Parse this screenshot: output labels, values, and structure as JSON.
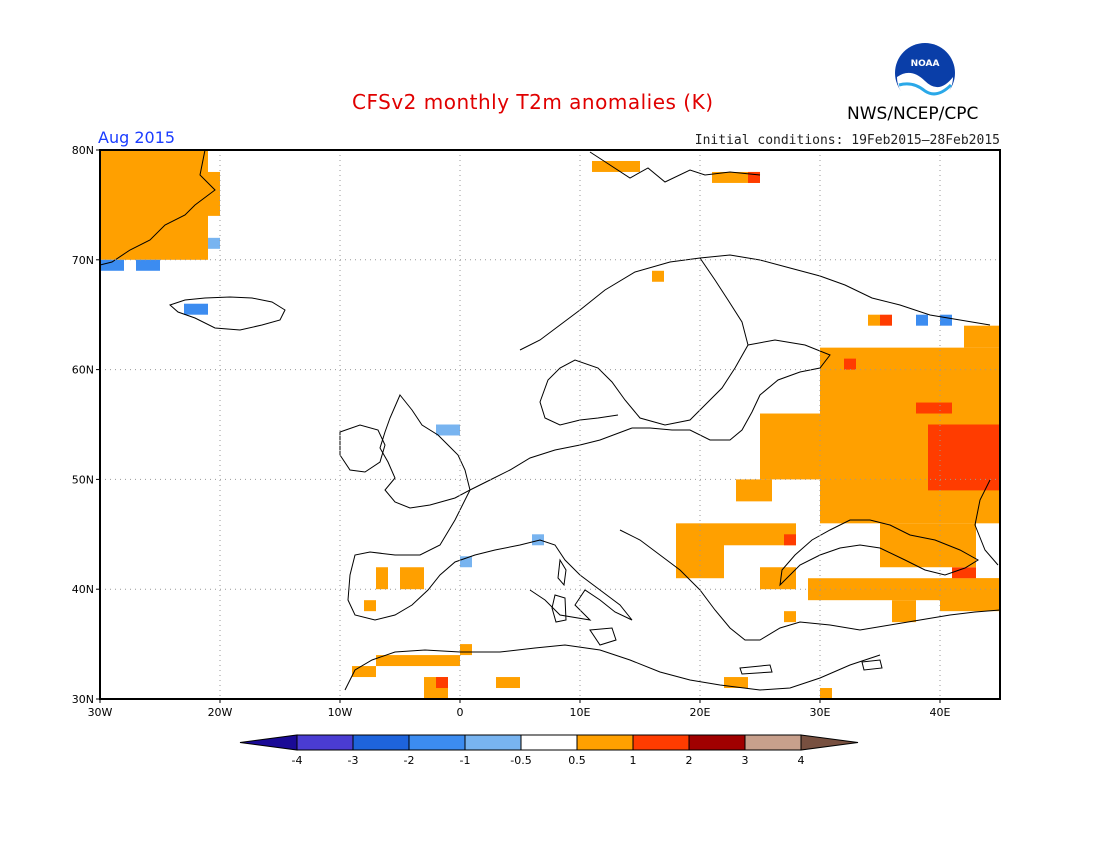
{
  "title": "CFSv2 monthly T2m anomalies (K)",
  "agency": "NWS/NCEP/CPC",
  "logo_text": "NOAA",
  "period": "Aug 2015",
  "initial_conditions": "Initial conditions: 19Feb2015—28Feb2015",
  "map": {
    "lon_range": [
      -30,
      45
    ],
    "lat_range": [
      30,
      80
    ],
    "lon_ticks": [
      "30W",
      "20W",
      "10W",
      "0",
      "10E",
      "20E",
      "30E",
      "40E"
    ],
    "lat_ticks": [
      "30N",
      "40N",
      "50N",
      "60N",
      "70N",
      "80N"
    ],
    "grid": true
  },
  "colorbar": {
    "levels": [
      "-4",
      "-3",
      "-2",
      "-1",
      "-0.5",
      "0.5",
      "1",
      "2",
      "3",
      "4"
    ],
    "colors": [
      "#1a0a96",
      "#4a3cd2",
      "#1e64dc",
      "#3c8cf0",
      "#78b4f0",
      "#ffffff",
      "#ffa000",
      "#ff3c00",
      "#a00000",
      "#c8a08c",
      "#785040"
    ]
  },
  "anomaly_cells": [
    {
      "lon": -30,
      "lat": 70,
      "w": 9,
      "h": 10,
      "class": "1"
    },
    {
      "lon": -22,
      "lat": 74,
      "w": 2,
      "h": 4,
      "class": "1"
    },
    {
      "lon": -30,
      "lat": 69,
      "w": 2,
      "h": 1,
      "class": "-1"
    },
    {
      "lon": -27,
      "lat": 69,
      "w": 2,
      "h": 1,
      "class": "-1"
    },
    {
      "lon": -23,
      "lat": 65,
      "w": 2,
      "h": 1,
      "class": "-1"
    },
    {
      "lon": -21,
      "lat": 71,
      "w": 1,
      "h": 1,
      "class": "-0.5"
    },
    {
      "lon": 11,
      "lat": 78,
      "w": 4,
      "h": 1,
      "class": "1"
    },
    {
      "lon": 21,
      "lat": 77,
      "w": 4,
      "h": 1,
      "class": "1"
    },
    {
      "lon": 24,
      "lat": 77,
      "w": 1,
      "h": 1,
      "class": "2"
    },
    {
      "lon": 16,
      "lat": 68,
      "w": 1,
      "h": 1,
      "class": "1"
    },
    {
      "lon": -2,
      "lat": 54,
      "w": 2,
      "h": 1,
      "class": "-0.5"
    },
    {
      "lon": 0,
      "lat": 42,
      "w": 1,
      "h": 1,
      "class": "-0.5"
    },
    {
      "lon": 6,
      "lat": 44,
      "w": 1,
      "h": 1,
      "class": "-0.5"
    },
    {
      "lon": 30,
      "lat": 46,
      "w": 15,
      "h": 16,
      "class": "1"
    },
    {
      "lon": 25,
      "lat": 50,
      "w": 5,
      "h": 6,
      "class": "1"
    },
    {
      "lon": 23,
      "lat": 48,
      "w": 3,
      "h": 2,
      "class": "1"
    },
    {
      "lon": 39,
      "lat": 49,
      "w": 6,
      "h": 6,
      "class": "2"
    },
    {
      "lon": 38,
      "lat": 56,
      "w": 3,
      "h": 1,
      "class": "2"
    },
    {
      "lon": 35,
      "lat": 64,
      "w": 1,
      "h": 1,
      "class": "2"
    },
    {
      "lon": 32,
      "lat": 60,
      "w": 1,
      "h": 1,
      "class": "2"
    },
    {
      "lon": 38,
      "lat": 64,
      "w": 1,
      "h": 1,
      "class": "-1"
    },
    {
      "lon": 40,
      "lat": 64,
      "w": 1,
      "h": 1,
      "class": "-1"
    },
    {
      "lon": 34,
      "lat": 64,
      "w": 1,
      "h": 1,
      "class": "1"
    },
    {
      "lon": 42,
      "lat": 62,
      "w": 3,
      "h": 2,
      "class": "1"
    },
    {
      "lon": 18,
      "lat": 41,
      "w": 4,
      "h": 5,
      "class": "1"
    },
    {
      "lon": 22,
      "lat": 44,
      "w": 3,
      "h": 2,
      "class": "1"
    },
    {
      "lon": 25,
      "lat": 44,
      "w": 3,
      "h": 2,
      "class": "1"
    },
    {
      "lon": 27,
      "lat": 44,
      "w": 1,
      "h": 1,
      "class": "2"
    },
    {
      "lon": 29,
      "lat": 39,
      "w": 16,
      "h": 2,
      "class": "1"
    },
    {
      "lon": 25,
      "lat": 40,
      "w": 3,
      "h": 2,
      "class": "1"
    },
    {
      "lon": 40,
      "lat": 38,
      "w": 5,
      "h": 3,
      "class": "1"
    },
    {
      "lon": 41,
      "lat": 41,
      "w": 2,
      "h": 1,
      "class": "2"
    },
    {
      "lon": 35,
      "lat": 42,
      "w": 8,
      "h": 4,
      "class": "1"
    },
    {
      "lon": 36,
      "lat": 37,
      "w": 2,
      "h": 2,
      "class": "1"
    },
    {
      "lon": 27,
      "lat": 37,
      "w": 1,
      "h": 1,
      "class": "1"
    },
    {
      "lon": -7,
      "lat": 40,
      "w": 1,
      "h": 2,
      "class": "1"
    },
    {
      "lon": -5,
      "lat": 40,
      "w": 2,
      "h": 2,
      "class": "1"
    },
    {
      "lon": -8,
      "lat": 38,
      "w": 1,
      "h": 1,
      "class": "1"
    },
    {
      "lon": -9,
      "lat": 32,
      "w": 2,
      "h": 1,
      "class": "1"
    },
    {
      "lon": -7,
      "lat": 33,
      "w": 7,
      "h": 1,
      "class": "1"
    },
    {
      "lon": -3,
      "lat": 30,
      "w": 2,
      "h": 2,
      "class": "1"
    },
    {
      "lon": -2,
      "lat": 31,
      "w": 1,
      "h": 1,
      "class": "2"
    },
    {
      "lon": 0,
      "lat": 34,
      "w": 1,
      "h": 1,
      "class": "1"
    },
    {
      "lon": 3,
      "lat": 31,
      "w": 2,
      "h": 1,
      "class": "1"
    },
    {
      "lon": 22,
      "lat": 31,
      "w": 2,
      "h": 1,
      "class": "1"
    },
    {
      "lon": 30,
      "lat": 30,
      "w": 1,
      "h": 1,
      "class": "1"
    }
  ]
}
